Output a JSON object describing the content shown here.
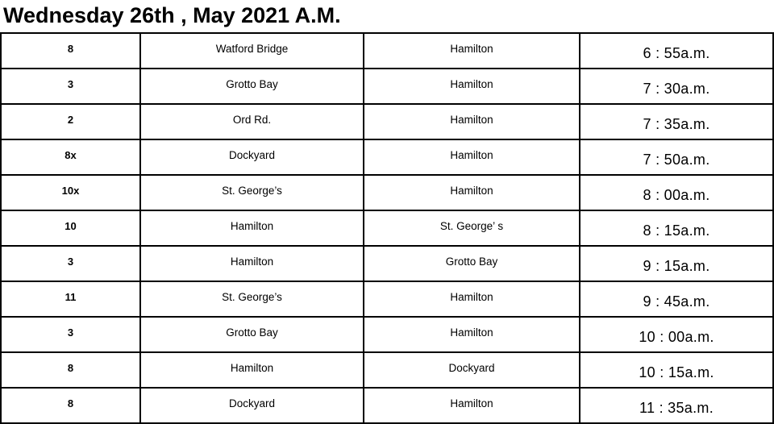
{
  "title": "Wednesday 26th , May 2021 A.M.",
  "table": {
    "rows": [
      {
        "route": "8",
        "from": "Watford Bridge",
        "to": "Hamilton",
        "time": "6 : 55a.m."
      },
      {
        "route": "3",
        "from": "Grotto Bay",
        "to": "Hamilton",
        "time": "7 : 30a.m."
      },
      {
        "route": "2",
        "from": "Ord Rd.",
        "to": "Hamilton",
        "time": "7 : 35a.m."
      },
      {
        "route": "8x",
        "from": "Dockyard",
        "to": "Hamilton",
        "time": "7 : 50a.m."
      },
      {
        "route": "10x",
        "from": "St. George’s",
        "to": "Hamilton",
        "time": "8 : 00a.m."
      },
      {
        "route": "10",
        "from": "Hamilton",
        "to": "St. George’ s",
        "time": "8 : 15a.m."
      },
      {
        "route": "3",
        "from": "Hamilton",
        "to": "Grotto Bay",
        "time": "9 : 15a.m."
      },
      {
        "route": "11",
        "from": "St. George’s",
        "to": "Hamilton",
        "time": "9 : 45a.m."
      },
      {
        "route": "3",
        "from": "Grotto Bay",
        "to": "Hamilton",
        "time": "10 : 00a.m."
      },
      {
        "route": "8",
        "from": "Hamilton",
        "to": "Dockyard",
        "time": "10 : 15a.m."
      },
      {
        "route": "8",
        "from": "Dockyard",
        "to": "Hamilton",
        "time": "11 : 35a.m."
      }
    ]
  },
  "colors": {
    "border": "#000000",
    "text": "#000000",
    "background": "#ffffff"
  }
}
